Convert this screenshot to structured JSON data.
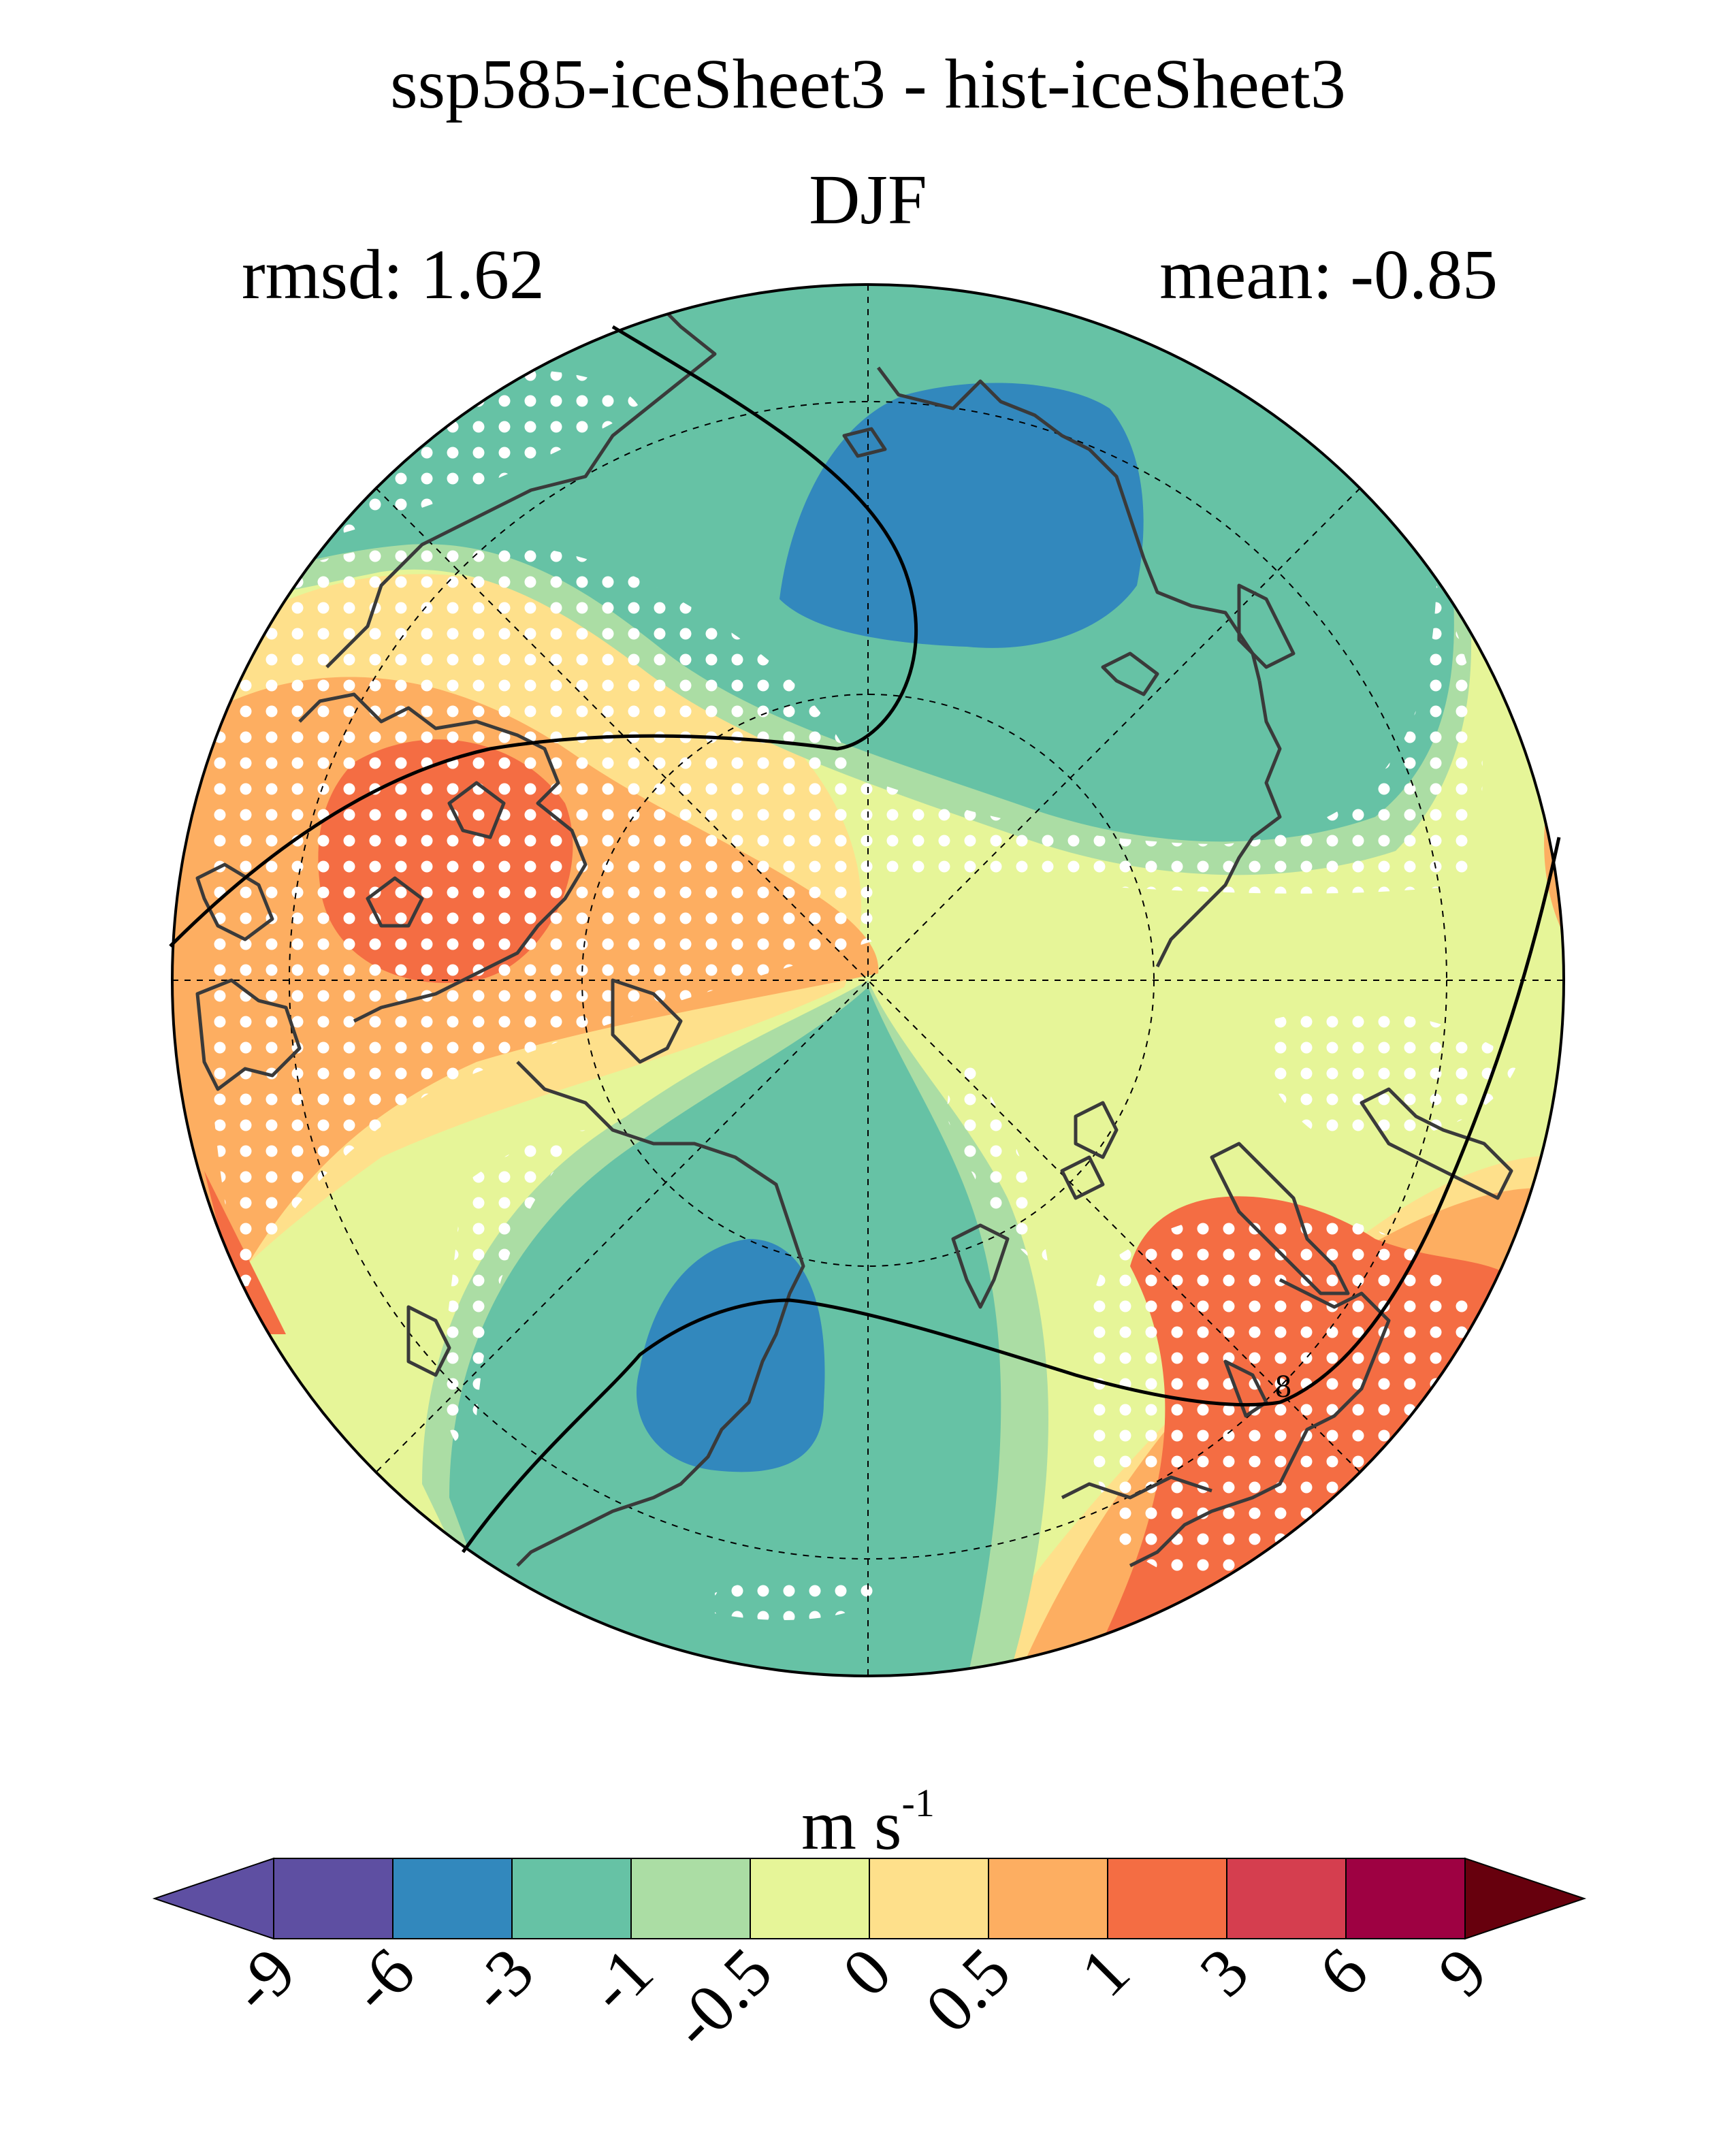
{
  "header": {
    "title": "ssp585-iceSheet3 - hist-iceSheet3",
    "season": "DJF",
    "rmsd_label": "rmsd: 1.62",
    "mean_label": "mean: -0.85"
  },
  "map": {
    "projection": "north-polar-stereographic",
    "stippling": "white dots mark significant regions",
    "contour_label": "8"
  },
  "colorbar": {
    "units_base": "m s",
    "units_exp": "-1",
    "ticks": [
      "-9",
      "-6",
      "-3",
      "-1",
      "-0.5",
      "0",
      "0.5",
      "1",
      "3",
      "6",
      "9"
    ],
    "colors": [
      "#5e4fa2",
      "#5e4fa2",
      "#3288bd",
      "#66c2a5",
      "#abdda4",
      "#e6f598",
      "#fee08b",
      "#fdae61",
      "#f46d43",
      "#d53e4f",
      "#9e0142",
      "#67000d"
    ],
    "extend": "both"
  }
}
